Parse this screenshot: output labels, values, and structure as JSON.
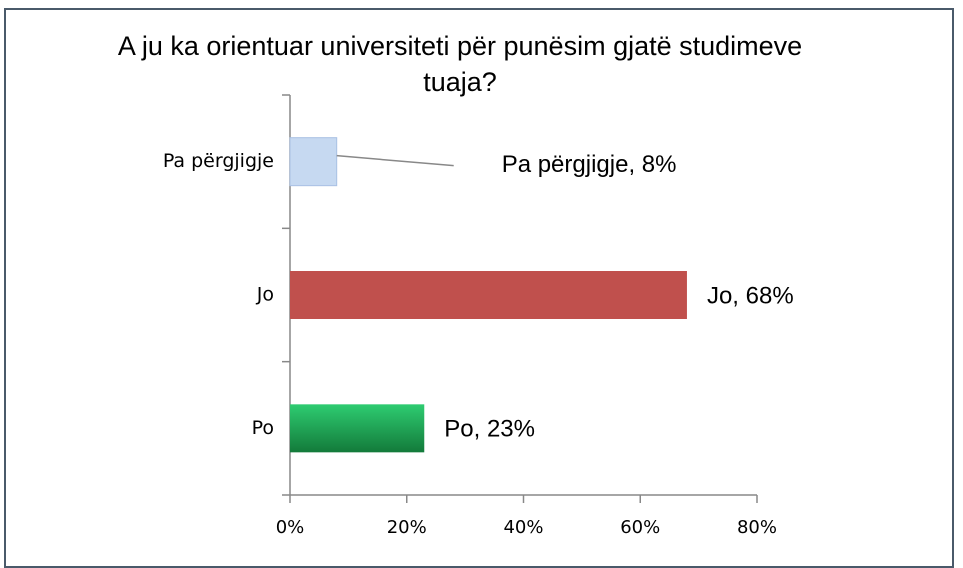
{
  "chart_data": {
    "type": "barh",
    "title": "A ju ka orientuar universiteti për punësim gjatë studimeve tuaja?",
    "categories": [
      "Pa përgjigje",
      "Jo",
      "Po"
    ],
    "values": [
      8,
      68,
      23
    ],
    "value_labels": [
      "Pa përgjigje, 8%",
      "Jo, 68%",
      "Po, 23%"
    ],
    "colors": [
      "#c6d9f1",
      "#c0504d",
      "#1fa855"
    ],
    "xlim": [
      0,
      80
    ],
    "xticks": [
      {
        "value": 0,
        "label": "0%"
      },
      {
        "value": 20,
        "label": "20%"
      },
      {
        "value": 40,
        "label": "40%"
      },
      {
        "value": 60,
        "label": "60%"
      },
      {
        "value": 80,
        "label": "80%"
      }
    ],
    "grid": false
  }
}
